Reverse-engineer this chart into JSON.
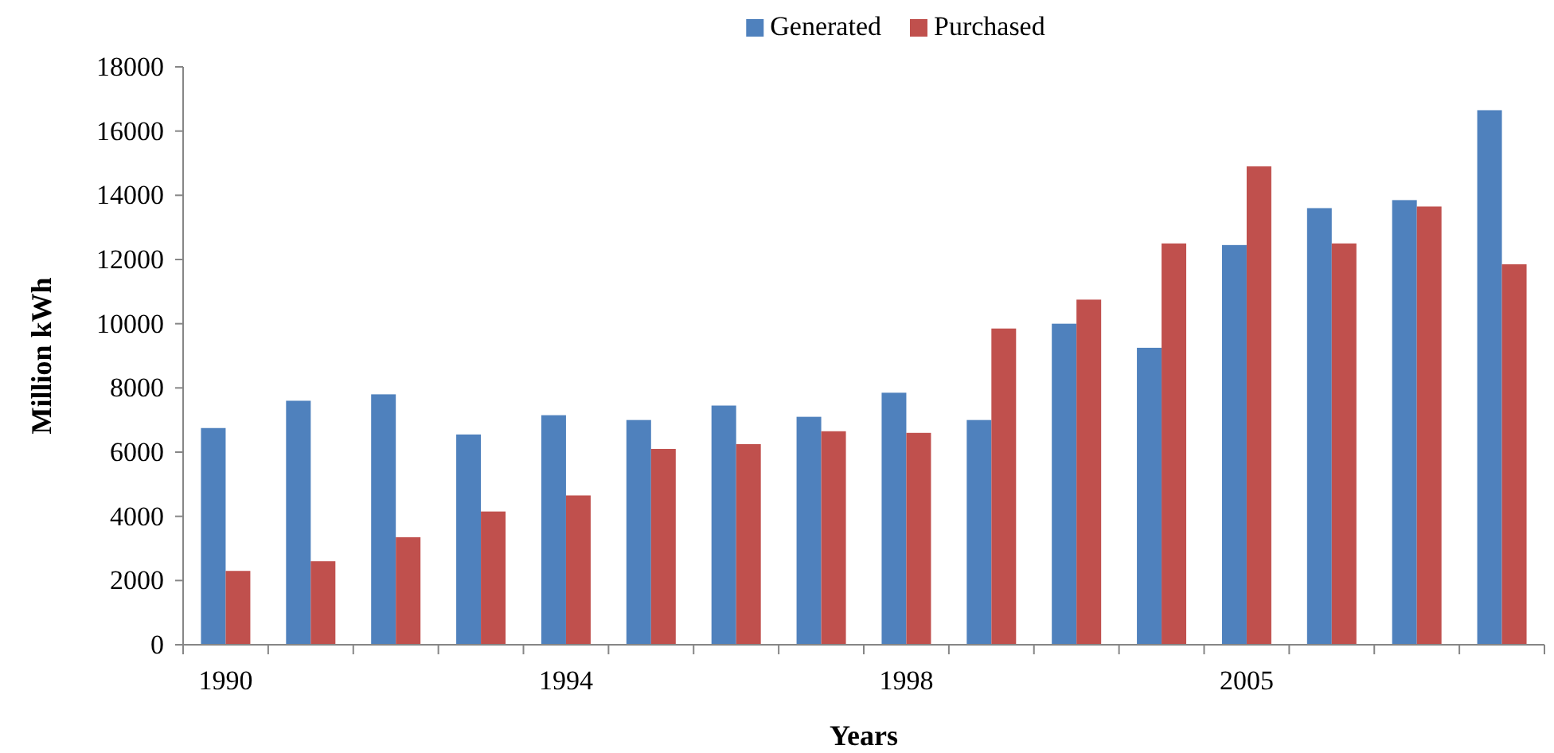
{
  "chart_data": {
    "type": "bar",
    "xlabel": "Years",
    "ylabel": "Million kWh",
    "categories": [
      "1990",
      null,
      null,
      null,
      "1994",
      null,
      null,
      null,
      "1998",
      null,
      null,
      null,
      "2005",
      null,
      null,
      null
    ],
    "series": [
      {
        "name": "Generated",
        "color": "#4f81bd",
        "values": [
          6750,
          7600,
          7800,
          6550,
          7150,
          7000,
          7450,
          7100,
          7850,
          7000,
          10000,
          9250,
          12450,
          13600,
          13850,
          16650
        ]
      },
      {
        "name": "Purchased",
        "color": "#c0504d",
        "values": [
          2300,
          2600,
          3350,
          4150,
          4650,
          6100,
          6250,
          6650,
          6600,
          9850,
          10750,
          12500,
          14900,
          12500,
          13650,
          11850
        ]
      }
    ],
    "ylim": [
      0,
      18000
    ],
    "yticks": [
      0,
      2000,
      4000,
      6000,
      8000,
      10000,
      12000,
      14000,
      16000,
      18000
    ],
    "grid": false,
    "legend": "top"
  }
}
